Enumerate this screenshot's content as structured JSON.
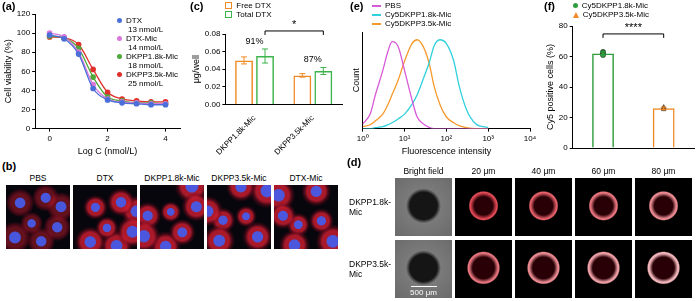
{
  "chart_data": [
    {
      "title": "(a)",
      "type": "line",
      "x": [
        0,
        0.5,
        1,
        1.5,
        2,
        2.5,
        3,
        3.5,
        4
      ],
      "series": [
        {
          "name": "DTX",
          "annotation": "13 nmol/L",
          "color": "#4b6fd8",
          "marker": "circle",
          "values": [
            98,
            94,
            78,
            42,
            30,
            27,
            26,
            25,
            25
          ]
        },
        {
          "name": "DTX-Mic",
          "annotation": "14 nmol/L",
          "color": "#d878d8",
          "marker": "circle",
          "values": [
            100,
            96,
            80,
            46,
            31,
            28,
            27,
            26,
            26
          ]
        },
        {
          "name": "DKPP1.8k-Mic",
          "annotation": "18 nmol/L",
          "color": "#4ea83a",
          "marker": "circle",
          "values": [
            97,
            95,
            84,
            54,
            33,
            29,
            27,
            27,
            26
          ]
        },
        {
          "name": "DKPP3.5k-Mic",
          "annotation": "25 nmol/L",
          "color": "#e0302c",
          "marker": "circle",
          "values": [
            96,
            95,
            88,
            62,
            38,
            31,
            29,
            28,
            28
          ]
        }
      ],
      "xlabel": "Log C (nmol/L)",
      "ylabel": "Cell viability (%)",
      "xlim": [
        -0.5,
        4.5
      ],
      "xticks": [
        0,
        2,
        4
      ],
      "ylim": [
        0,
        120
      ],
      "yticks": [
        0,
        20,
        40,
        60,
        80,
        100,
        120
      ],
      "grid": false,
      "legend": "upper right"
    },
    {
      "title": "(c)",
      "type": "bar",
      "categories": [
        "DKPP1.8k-Mic",
        "DKPP3.5k-Mic"
      ],
      "series": [
        {
          "name": "Free DTX",
          "color": "#f08a24",
          "values": [
            0.05,
            0.033
          ],
          "errors": [
            0.004,
            0.002
          ]
        },
        {
          "name": "Total DTX",
          "color": "#3cb44b",
          "values": [
            0.055,
            0.038
          ],
          "errors": [
            0.008,
            0.004
          ]
        }
      ],
      "ylabel": "μg/well",
      "ylim": [
        0,
        0.08
      ],
      "yticks": [
        {
          "value": 0,
          "label": "0.00"
        },
        {
          "value": 0.02,
          "label": "0.02"
        },
        {
          "value": 0.04,
          "label": "0.04"
        },
        {
          "value": 0.06,
          "label": "0.06"
        },
        {
          "value": 0.08,
          "label": "0.08"
        }
      ],
      "annotations": [
        {
          "text": "91%",
          "category": "DKPP1.8k-Mic"
        },
        {
          "text": "87%",
          "category": "DKPP3.5k-Mic"
        },
        {
          "text": "*",
          "between": [
            "DKPP1.8k-Mic",
            "DKPP3.5k-Mic"
          ]
        }
      ],
      "grid": false,
      "legend": "upper left"
    },
    {
      "title": "(e)",
      "type": "line",
      "x": [
        1,
        1.5,
        2,
        3,
        4,
        5,
        7,
        10,
        15,
        20,
        30,
        40,
        50,
        70,
        100,
        150,
        200,
        300,
        500,
        1000
      ],
      "series": [
        {
          "name": "PBS",
          "color": "#d85ad8",
          "values": [
            5,
            15,
            35,
            60,
            80,
            90,
            85,
            60,
            30,
            12,
            4,
            1,
            0,
            0,
            0,
            0,
            0,
            0,
            0,
            0
          ]
        },
        {
          "name": "Cy5DKPP1.8k-Mic",
          "color": "#30d0dc",
          "values": [
            0,
            0,
            1,
            2,
            4,
            6,
            10,
            15,
            25,
            35,
            55,
            70,
            85,
            92,
            88,
            70,
            45,
            20,
            5,
            1
          ]
        },
        {
          "name": "Cy5DKPP3.5k-Mic",
          "color": "#f59a2c",
          "values": [
            2,
            4,
            8,
            15,
            25,
            35,
            50,
            70,
            88,
            92,
            82,
            65,
            45,
            25,
            12,
            6,
            3,
            1,
            0,
            0
          ]
        }
      ],
      "xlabel": "Fluorescence intensity",
      "ylabel": "Count",
      "xlim": [
        1,
        10000
      ],
      "xticks": [
        {
          "value": 1,
          "label": "10⁰"
        },
        {
          "value": 10,
          "label": "10¹"
        },
        {
          "value": 100,
          "label": "10²"
        },
        {
          "value": 1000,
          "label": "10³"
        },
        {
          "value": 10000,
          "label": "10⁴"
        }
      ],
      "ylim": [
        0,
        100
      ],
      "log": "x",
      "tick_labels": "x",
      "grid": false,
      "legend": "upper left"
    },
    {
      "title": "(f)",
      "type": "bar",
      "categories": [
        null,
        null
      ],
      "series": [
        {
          "name": "Cy5DKPP1.8k-Mic",
          "color": "#2e9e3e",
          "marker": "circle",
          "values": [
            62,
            null
          ],
          "errors": [
            1.0,
            null
          ],
          "points": [
            [
              61.0,
              62.2,
              63.0
            ],
            null
          ]
        },
        {
          "name": "Cy5DKPP3.5k-Mic",
          "color": "#f08a24",
          "marker": "triangle",
          "values": [
            null,
            26
          ],
          "errors": [
            null,
            0.8
          ],
          "points": [
            null,
            [
              25.3,
              26.0,
              26.8
            ]
          ]
        }
      ],
      "ylabel": "Cy5 positive cells (%)",
      "ylim": [
        0,
        80
      ],
      "yticks": [
        0,
        20,
        40,
        60,
        80
      ],
      "annotations": [
        {
          "text": "****",
          "between": [
            0,
            1
          ]
        }
      ],
      "tick_labels": "y",
      "grid": false,
      "legend": "upper left"
    }
  ],
  "image_panels": [
    {
      "title": "(b)",
      "columns": [
        "PBS",
        "DTX",
        "DKPP1.8k-Mic",
        "DKPP3.5k-Mic",
        "DTX-Mic"
      ]
    },
    {
      "title": "(d)",
      "columns": [
        "Bright field",
        "20 μm",
        "40 μm",
        "60 μm",
        "80 μm"
      ],
      "rows": [
        "DKPP1.8k-Mic",
        "DKPP3.5k-Mic"
      ],
      "scale_bar": "500 μm"
    }
  ]
}
